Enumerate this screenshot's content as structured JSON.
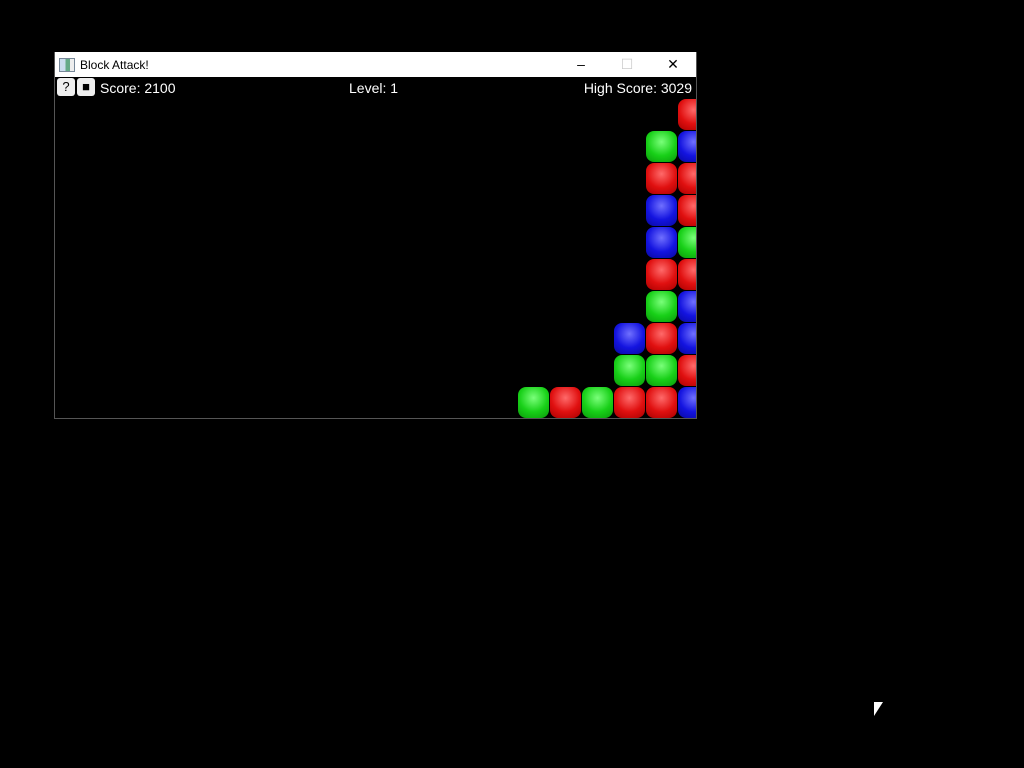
{
  "window": {
    "title": "Block Attack!",
    "minimize": "–",
    "maximize": "☐",
    "close": "✕"
  },
  "hud": {
    "help_button": "?",
    "stop_button": "■",
    "score": "Score: 2100",
    "level": "Level: 1",
    "high_score": "High Score: 3029"
  },
  "colors": {
    "red": "#e01010",
    "green": "#18d018",
    "blue": "#1414e0"
  },
  "board": {
    "note_cols": "columns counted from right edge, rows from bottom",
    "columns": [
      [
        "blue",
        "red",
        "blue",
        "blue",
        "red",
        "green",
        "red",
        "red",
        "blue",
        "red"
      ],
      [
        "red",
        "green",
        "red",
        "green",
        "red",
        "blue",
        "blue",
        "red",
        "green"
      ],
      [
        "red",
        "green",
        "blue"
      ],
      [
        "green"
      ],
      [
        "red"
      ],
      [
        "green"
      ]
    ]
  }
}
